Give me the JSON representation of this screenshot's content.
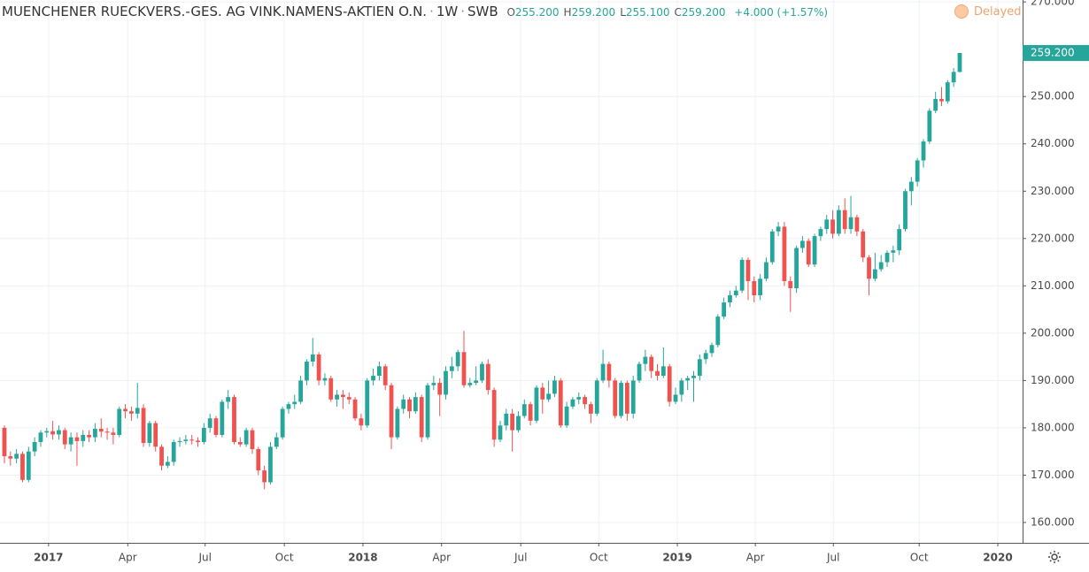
{
  "chart_data": {
    "type": "candlestick",
    "title": "MUENCHENER RUECKVERS.-GES. AG VINK.NAMENS-AKTIEN O.N.",
    "interval": "1W",
    "exchange": "SWB",
    "legend_values": [
      {
        "key": "O",
        "value": "255.200"
      },
      {
        "key": "H",
        "value": "259.200"
      },
      {
        "key": "L",
        "value": "255.100"
      },
      {
        "key": "C",
        "value": "259.200"
      }
    ],
    "change": "+4.000 (+1.57%)",
    "status": "Delayed",
    "last_price_label": "259.200",
    "up_color": "#26a69a",
    "down_color": "#ef5350",
    "grid": true,
    "xlim": [
      -0.73,
      168.4
    ],
    "ylim": [
      155.7,
      270.4
    ],
    "xticks": [
      {
        "value": 7.3,
        "label": "2017",
        "bold": true
      },
      {
        "value": 20.4,
        "label": "Apr"
      },
      {
        "value": 33.2,
        "label": "Jul"
      },
      {
        "value": 46.3,
        "label": "Oct"
      },
      {
        "value": 59.3,
        "label": "2018",
        "bold": true
      },
      {
        "value": 72.3,
        "label": "Apr"
      },
      {
        "value": 85.4,
        "label": "Jul"
      },
      {
        "value": 98.3,
        "label": "Oct"
      },
      {
        "value": 111.3,
        "label": "2019",
        "bold": true
      },
      {
        "value": 124.2,
        "label": "Apr"
      },
      {
        "value": 137.1,
        "label": "Jul"
      },
      {
        "value": 151.3,
        "label": "Oct"
      },
      {
        "value": 164.3,
        "label": "2020",
        "bold": true
      }
    ],
    "yticks": [
      {
        "value": 160,
        "label": "160.000"
      },
      {
        "value": 170,
        "label": "170.000"
      },
      {
        "value": 180,
        "label": "180.000"
      },
      {
        "value": 190,
        "label": "190.000"
      },
      {
        "value": 200,
        "label": "200.000"
      },
      {
        "value": 210,
        "label": "210.000"
      },
      {
        "value": 220,
        "label": "220.000"
      },
      {
        "value": 230,
        "label": "230.000"
      },
      {
        "value": 240,
        "label": "240.000"
      },
      {
        "value": 250,
        "label": "250.000"
      },
      {
        "value": 270,
        "label": "270.000"
      }
    ],
    "open": [
      180,
      174,
      173.5,
      174.5,
      169,
      175,
      177,
      179,
      179.3,
      178.6,
      179.5,
      176.5,
      178,
      177.2,
      178.5,
      178,
      179.8,
      179.2,
      179,
      178.5,
      184,
      183.5,
      183,
      184.2,
      176.8,
      181,
      176,
      172,
      172.8,
      177,
      177.2,
      177.5,
      177.3,
      177,
      180,
      182,
      178.5,
      185.5,
      186.5,
      177,
      176.5,
      179.5,
      175.5,
      171,
      168.5,
      176,
      178,
      184,
      185,
      185.5,
      190,
      194,
      195.5,
      190,
      190.5,
      186,
      187,
      186.5,
      186,
      182,
      180.5,
      190,
      191,
      193,
      189,
      178,
      184,
      186,
      183.5,
      186.5,
      178,
      189,
      189.5,
      187,
      192,
      193,
      196,
      189,
      189.5,
      190,
      193.5,
      188,
      177.5,
      180.5,
      183,
      179.5,
      182.5,
      185,
      181.5,
      188.5,
      186,
      187.2,
      190,
      180.5,
      184.5,
      186,
      186.5,
      185,
      183,
      190,
      193.5,
      190,
      182.5,
      189.5,
      183,
      190,
      193.5,
      195,
      192,
      191,
      193,
      185.5,
      187,
      190,
      190.5,
      191,
      194.5,
      195.8,
      197.5,
      203.5,
      206.5,
      208,
      209,
      215.5,
      211,
      208,
      211.5,
      215,
      221.5,
      222.5,
      211,
      209.5,
      218,
      219.5,
      214.5,
      220.5,
      222,
      224,
      221,
      226,
      222,
      224.5,
      221.5,
      216,
      211.5,
      213.5,
      215,
      217,
      217.5,
      222,
      230,
      232,
      236.5,
      240.5,
      247,
      249.5,
      249,
      253,
      255.2
    ],
    "high": [
      180.5,
      175,
      175.5,
      175,
      176,
      178,
      179.5,
      180,
      181.5,
      180.5,
      180,
      179,
      179,
      179.5,
      179.5,
      181,
      182,
      180,
      180,
      184.5,
      185,
      184.5,
      189.5,
      185,
      181.5,
      181.5,
      176.5,
      174,
      177.5,
      178,
      178.5,
      178.5,
      178,
      181,
      183,
      182.5,
      186,
      188,
      187,
      178,
      180,
      180,
      176,
      172,
      177,
      179,
      184.5,
      185.5,
      187,
      191,
      194.5,
      199,
      196,
      191.5,
      191,
      188,
      188,
      187.5,
      186.5,
      183,
      190.5,
      192.5,
      194,
      193.5,
      189.5,
      184.5,
      187,
      186.5,
      187.5,
      187,
      189.5,
      191,
      190.5,
      193,
      195,
      196.5,
      200.5,
      190.5,
      193,
      194,
      194.5,
      188.5,
      181.5,
      184,
      184,
      183.5,
      186,
      185.5,
      189,
      189.5,
      190,
      191,
      190.5,
      185.5,
      186.5,
      187.5,
      187,
      185.5,
      190.5,
      196.5,
      194,
      190.5,
      190,
      190,
      191,
      194,
      196.5,
      195.5,
      193.5,
      197,
      193.5,
      188.5,
      190.5,
      191,
      192,
      195.5,
      196.5,
      198,
      204,
      207.5,
      209,
      210,
      216,
      216,
      212,
      212.5,
      216,
      222,
      223.5,
      223.5,
      212,
      218.5,
      220.5,
      220,
      221,
      222.5,
      225,
      226,
      227,
      228.5,
      229,
      225,
      222,
      216.5,
      217,
      216.5,
      217.5,
      218.5,
      223,
      230.5,
      233,
      237,
      241,
      247.5,
      251,
      252,
      253.5,
      256,
      259.2
    ],
    "low": [
      172.5,
      172,
      172.5,
      168.5,
      168.5,
      174,
      176,
      178,
      177.5,
      177.5,
      175.5,
      175,
      172,
      176,
      177,
      177,
      178,
      177.5,
      176.5,
      178,
      182,
      181.5,
      182,
      176,
      176,
      175,
      171,
      171.5,
      172,
      176,
      176.5,
      176.5,
      176,
      176.5,
      179,
      178,
      178,
      184,
      176.5,
      176,
      176,
      174.5,
      170,
      167,
      168,
      175.5,
      177.5,
      183,
      184,
      185,
      189,
      193,
      189,
      189,
      185.5,
      184.5,
      184,
      185,
      181.5,
      179.5,
      180,
      189,
      190,
      188,
      175.5,
      177.5,
      183,
      182,
      183,
      177,
      177.5,
      188,
      182.5,
      186,
      190.5,
      192,
      188.5,
      188.5,
      189,
      189.5,
      187,
      176,
      177,
      179.5,
      175,
      179,
      182,
      180.5,
      181,
      183,
      185.5,
      186.5,
      180,
      180,
      184,
      185,
      184,
      181,
      182.5,
      189.5,
      188.5,
      182,
      182,
      181.5,
      182,
      189.5,
      192,
      190.5,
      190,
      190.5,
      184.5,
      185,
      185.5,
      188,
      185.5,
      190,
      193.5,
      195,
      197,
      203,
      205.5,
      207.5,
      208.5,
      207,
      206.5,
      207,
      211,
      214.5,
      220.5,
      210,
      204.5,
      208.5,
      217,
      214,
      214,
      219.5,
      221,
      220,
      220.5,
      221,
      221,
      220.5,
      215,
      208,
      211,
      213,
      214,
      215,
      216.5,
      221.5,
      227,
      231,
      235,
      240,
      246.5,
      248,
      248.5,
      252,
      255.1
    ],
    "close": [
      174,
      173.5,
      174.5,
      169,
      175,
      177,
      179,
      179.3,
      178.6,
      179.5,
      176.5,
      178,
      177.2,
      178.5,
      178,
      179.8,
      179.2,
      179,
      178.5,
      184,
      183.5,
      183,
      184.2,
      176.8,
      181,
      176,
      172,
      172.8,
      177,
      177.2,
      177.5,
      177.3,
      177,
      180,
      182,
      178.5,
      185.5,
      186.5,
      177,
      176.5,
      179.5,
      175.5,
      171,
      168.5,
      176,
      178,
      184,
      185,
      185.5,
      190,
      194,
      195.5,
      190,
      190.5,
      186,
      187,
      186.5,
      186,
      182,
      180.5,
      190,
      191,
      193,
      189,
      178,
      184,
      186,
      183.5,
      186.5,
      178,
      189,
      189.5,
      187,
      192,
      193,
      196,
      189,
      189.5,
      190,
      193.5,
      188,
      177.5,
      180.5,
      183,
      179.5,
      182.5,
      185,
      181.5,
      188.5,
      186,
      187.2,
      190,
      180.5,
      184.5,
      186,
      186.5,
      185,
      183,
      190,
      193.5,
      190,
      182.5,
      189.5,
      183,
      190,
      193.5,
      195,
      192,
      191,
      193,
      185.5,
      187,
      190,
      190.5,
      191,
      194.5,
      195.8,
      197.5,
      203.5,
      206.5,
      208,
      209,
      215.5,
      211,
      208,
      211.5,
      215,
      221.5,
      222.5,
      211,
      209.5,
      218,
      219.5,
      214.5,
      220.5,
      222,
      224,
      221,
      226,
      222,
      224.5,
      221.5,
      216,
      211.5,
      213.5,
      215,
      217,
      217.5,
      222,
      230,
      232,
      236.5,
      240.5,
      247,
      249.5,
      249,
      253,
      255.2,
      259.2
    ]
  }
}
